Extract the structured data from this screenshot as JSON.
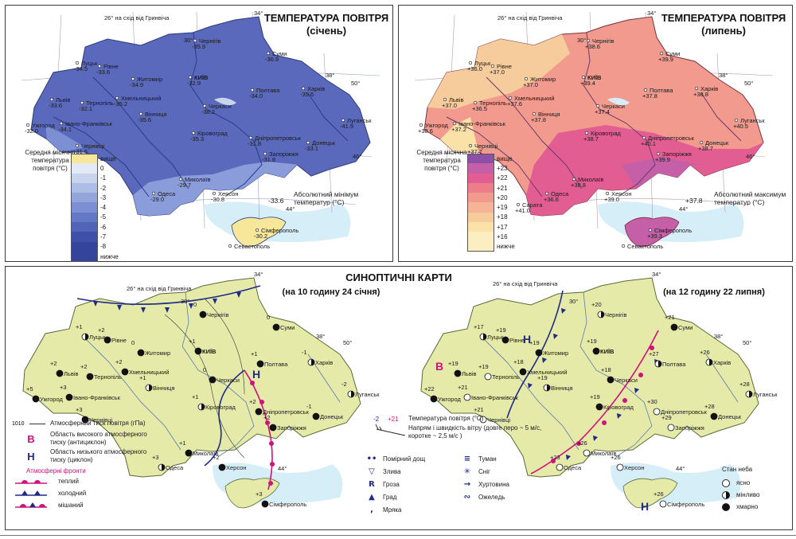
{
  "january": {
    "title_line1": "ТЕМПЕРАТУРА ПОВІТРЯ",
    "title_line2": "(січень)",
    "meridian_label": "26° на схід від Гринвіча",
    "degree_labels": [
      "34°",
      "30°",
      "38°",
      "50°",
      "46°",
      "44°"
    ],
    "legend_title": "Середня місячна температура повітря (°C)",
    "scale_top": "вище",
    "scale_bottom": "нижче",
    "scale_values": [
      "0",
      "-1",
      "-2",
      "-3",
      "-4",
      "-5",
      "-6",
      "-7",
      "-8"
    ],
    "scale_colors": [
      "#f6e79a",
      "#e3eaf6",
      "#c8d4ee",
      "#aebde6",
      "#93a6dc",
      "#7b8fd2",
      "#6479c6",
      "#5064b8",
      "#3e50a8",
      "#34449a"
    ],
    "absolute_label": "Абсолютний мінімум температур (°C)",
    "absolute_value": "-33.6",
    "cities": [
      {
        "name": "Чернігів",
        "temp": "-35.9"
      },
      {
        "name": "Суми",
        "temp": "-36.9"
      },
      {
        "name": "Луцьк",
        "temp": "-34.5"
      },
      {
        "name": "Рівне",
        "temp": "-33.6"
      },
      {
        "name": "Житомир",
        "temp": "-34.9"
      },
      {
        "name": "КИЇВ",
        "temp": "-32.9"
      },
      {
        "name": "Харків",
        "temp": "-35.6"
      },
      {
        "name": "Львів",
        "temp": "-33.6"
      },
      {
        "name": "Тернопіль",
        "temp": "-32.1"
      },
      {
        "name": "Хмельницький",
        "temp": "-35.2"
      },
      {
        "name": "Полтава",
        "temp": "-34.0"
      },
      {
        "name": "Луганськ",
        "temp": "-41.9"
      },
      {
        "name": "Ужгород",
        "temp": "-32.0"
      },
      {
        "name": "Івано-Франківськ",
        "temp": "-34.1"
      },
      {
        "name": "Вінниця",
        "temp": "-35.6"
      },
      {
        "name": "Черкаси",
        "temp": "-38.2"
      },
      {
        "name": "Чернівці",
        "temp": "-31.6"
      },
      {
        "name": "Кіровоград",
        "temp": "-35.3"
      },
      {
        "name": "Дніпропетровськ",
        "temp": "-31.8"
      },
      {
        "name": "Донецьк",
        "temp": "-33.1"
      },
      {
        "name": "Запоріжжя",
        "temp": "-31.8"
      },
      {
        "name": "Миколаїв",
        "temp": "-29.7"
      },
      {
        "name": "Одеса",
        "temp": "-29.0"
      },
      {
        "name": "Херсон",
        "temp": "-30.8"
      },
      {
        "name": "Сімферополь",
        "temp": "-30.2"
      },
      {
        "name": "Севастополь",
        "temp": ""
      }
    ],
    "extra_temps": [
      "-35.1",
      "-31.0",
      "-34.6",
      "-32.5"
    ]
  },
  "july": {
    "title_line1": "ТЕМПЕРАТУРА ПОВІТРЯ",
    "title_line2": "(липень)",
    "meridian_label": "26° на схід від Гринвіча",
    "degree_labels": [
      "34°",
      "30°",
      "38°",
      "50°",
      "46°",
      "44°"
    ],
    "legend_title": "Середня місячна температура повітря (°C)",
    "scale_top": "вище",
    "scale_bottom": "нижче",
    "scale_values": [
      "+23",
      "+22",
      "+21",
      "+20",
      "+19",
      "+18",
      "+17",
      "+16"
    ],
    "scale_colors": [
      "#8e4fa6",
      "#c45fa8",
      "#e25e92",
      "#ee7d8a",
      "#f29a8e",
      "#f5b495",
      "#f7cc9c",
      "#f9e1a8",
      "#fbefc2"
    ],
    "absolute_label": "Абсолютний максимум температур (°C)",
    "absolute_value": "+37.8",
    "cities": [
      {
        "name": "Чернігів",
        "temp": "+38.6"
      },
      {
        "name": "Суми",
        "temp": "+39.9"
      },
      {
        "name": "Луцьк",
        "temp": "+36.0"
      },
      {
        "name": "Рівне",
        "temp": "+37.0"
      },
      {
        "name": "Житомир",
        "temp": "+37.0"
      },
      {
        "name": "КИЇВ",
        "temp": "+39.4"
      },
      {
        "name": "Харків",
        "temp": "+38.8"
      },
      {
        "name": "Львів",
        "temp": "+37.0"
      },
      {
        "name": "Тернопіль",
        "temp": "+36.5"
      },
      {
        "name": "Хмельницький",
        "temp": "+37.6"
      },
      {
        "name": "Полтава",
        "temp": "+37.8"
      },
      {
        "name": "Луганськ",
        "temp": "+40.5"
      },
      {
        "name": "Ужгород",
        "temp": "+38.6"
      },
      {
        "name": "Івано-Франківськ",
        "temp": "+37.2"
      },
      {
        "name": "Вінниця",
        "temp": "+37.8"
      },
      {
        "name": "Черкаси",
        "temp": "+37.4"
      },
      {
        "name": "Чернівці",
        "temp": "+37.7"
      },
      {
        "name": "Кіровоград",
        "temp": "+38.7"
      },
      {
        "name": "Дніпропетровськ",
        "temp": "+40.1"
      },
      {
        "name": "Донецьк",
        "temp": "+38.7"
      },
      {
        "name": "Запоріжжя",
        "temp": "+39.9"
      },
      {
        "name": "Миколаїв",
        "temp": "+38.8"
      },
      {
        "name": "Одеса",
        "temp": "+36.6"
      },
      {
        "name": "Херсон",
        "temp": "+39.0"
      },
      {
        "name": "Сімферополь",
        "temp": "+39.3"
      },
      {
        "name": "Сарата",
        "temp": "+41.0"
      },
      {
        "name": "Севастополь",
        "temp": ""
      }
    ]
  },
  "synoptic": {
    "title": "СИНОПТИЧНІ КАРТИ",
    "meridian_label": "26° на схід від Гринвіча",
    "degree_labels": [
      "34°",
      "30°",
      "38°",
      "50°",
      "46°",
      "44°"
    ],
    "jan_subtitle": "(на 10 годину 24 січня)",
    "jul_subtitle": "(на 12 годину 22 липня)",
    "jan_map": {
      "high_label": "В",
      "low_label": "Н",
      "isobars": [
        "1010",
        "1015",
        "1020"
      ],
      "cities": [
        {
          "name": "Чернігів",
          "temp": "0"
        },
        {
          "name": "Суми",
          "temp": "0"
        },
        {
          "name": "Луцьк",
          "temp": "+1"
        },
        {
          "name": "Рівне",
          "temp": "+2"
        },
        {
          "name": "Житомир",
          "temp": "0"
        },
        {
          "name": "КИЇВ",
          "temp": "+1"
        },
        {
          "name": "Харків",
          "temp": "-1"
        },
        {
          "name": "Львів",
          "temp": "+2"
        },
        {
          "name": "Тернопіль",
          "temp": "+2"
        },
        {
          "name": "Хмельницький",
          "temp": "+2"
        },
        {
          "name": "Вінниця",
          "temp": "+1"
        },
        {
          "name": "Полтава",
          "temp": "+1"
        },
        {
          "name": "Черкаси",
          "temp": "0"
        },
        {
          "name": "Луганськ",
          "temp": "-2"
        },
        {
          "name": "Ужгород",
          "temp": "+5"
        },
        {
          "name": "Івано-Франківськ",
          "temp": "+3"
        },
        {
          "name": "Чернівці",
          "temp": "+3"
        },
        {
          "name": "Кіровоград",
          "temp": "+1"
        },
        {
          "name": "Дніпропетровськ",
          "temp": "+2"
        },
        {
          "name": "Донецьк",
          "temp": "-1"
        },
        {
          "name": "Запоріжжя",
          "temp": "+2"
        },
        {
          "name": "Миколаїв",
          "temp": "+1"
        },
        {
          "name": "Херсон",
          "temp": "+2"
        },
        {
          "name": "Одеса",
          "temp": "+3"
        },
        {
          "name": "Сімферополь",
          "temp": "+3"
        }
      ]
    },
    "jul_map": {
      "high_label": "В",
      "low_labels": [
        "Н",
        "Н"
      ],
      "cities": [
        {
          "name": "Чернігів",
          "temp": "+20"
        },
        {
          "name": "Суми",
          "temp": "+21"
        },
        {
          "name": "Луцьк",
          "temp": "+17"
        },
        {
          "name": "Рівне",
          "temp": "+19"
        },
        {
          "name": "Житомир",
          "temp": "+19"
        },
        {
          "name": "КИЇВ",
          "temp": "+19"
        },
        {
          "name": "Харків",
          "temp": "+26"
        },
        {
          "name": "Львів",
          "temp": "+19"
        },
        {
          "name": "Тернопіль",
          "temp": "+19"
        },
        {
          "name": "Хмельницький",
          "temp": "+18"
        },
        {
          "name": "Вінниця",
          "temp": "+19"
        },
        {
          "name": "Полтава",
          "temp": "+27"
        },
        {
          "name": "Черкаси",
          "temp": "+18"
        },
        {
          "name": "Луганськ",
          "temp": "+28"
        },
        {
          "name": "Ужгород",
          "temp": "+22"
        },
        {
          "name": "Івано-Франківськ",
          "temp": "+21"
        },
        {
          "name": "Чернівці",
          "temp": "+21"
        },
        {
          "name": "Кіровоград",
          "temp": "+19"
        },
        {
          "name": "Дніпропетровськ",
          "temp": "+30"
        },
        {
          "name": "Донецьк",
          "temp": "+28"
        },
        {
          "name": "Запоріжжя",
          "temp": "+29"
        },
        {
          "name": "Миколаїв",
          "temp": "+26"
        },
        {
          "name": "Херсон",
          "temp": "+26"
        },
        {
          "name": "Одеса",
          "temp": "+23"
        },
        {
          "name": "Сімферополь",
          "temp": "+26"
        }
      ]
    },
    "legend_left": {
      "isobar_value": "1010",
      "isobar_label": "Атмосферний тиск повітря (гПа)",
      "high_symbol": "В",
      "high_label": "Область високого атмосферного тиску (антициклон)",
      "low_symbol": "Н",
      "low_label": "Область низького атмосферного тиску (циклон)",
      "fronts_title": "Атмосферні фронти",
      "fronts": [
        "теплий",
        "холодний",
        "мішаний"
      ]
    },
    "legend_center": {
      "temp_example_blue": "-2",
      "temp_example_red": "+21",
      "temp_label": "Температура повітря (°C)",
      "wind_label": "Напрям і швидкість вітру (довге перо ~ 5 м/с, коротке ~ 2,5 м/с )",
      "phenomena": [
        {
          "symbol": "••",
          "label": "Помірний дощ",
          "icon": "rain-icon"
        },
        {
          "symbol": "▽",
          "label": "Злива",
          "icon": "shower-icon"
        },
        {
          "symbol": "R",
          "label": "Гроза",
          "icon": "thunderstorm-icon"
        },
        {
          "symbol": "▲",
          "label": "Град",
          "icon": "hail-icon"
        },
        {
          "symbol": ",",
          "label": "Мряка",
          "icon": "drizzle-icon"
        },
        {
          "symbol": "≡",
          "label": "Туман",
          "icon": "fog-icon"
        },
        {
          "symbol": "✳",
          "label": "Сніг",
          "icon": "snow-icon"
        },
        {
          "symbol": "→",
          "label": "Хуртовина",
          "icon": "blizzard-icon"
        },
        {
          "symbol": "∾",
          "label": "Ожеледь",
          "icon": "glaze-icon"
        }
      ]
    },
    "legend_sky": {
      "title": "Стан неба",
      "items": [
        "ясно",
        "мінливо",
        "хмарно"
      ]
    }
  },
  "colors": {
    "jan_land": "#5866b8",
    "jan_land_light": "#8a9ad8",
    "jul_land": "#ee7d8a",
    "jul_land_light": "#f6b49a",
    "syn_land": "#e8ecb0",
    "sea": "#d6eef8",
    "high_pressure": "#d0127a",
    "low_pressure": "#1f2a8a",
    "front_warm": "#d0127a",
    "front_cold": "#1f2a8a"
  }
}
